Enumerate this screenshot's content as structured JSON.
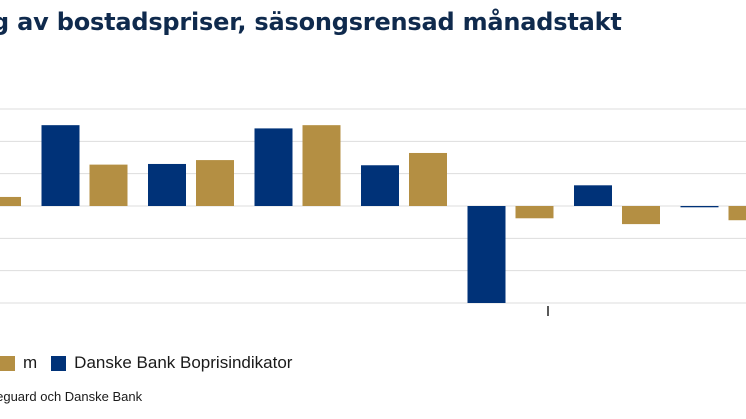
{
  "chart_data": {
    "type": "bar",
    "title": "g av bostadspriser, säsongsrensad månadstakt",
    "grid": true,
    "ylim": [
      -1.5,
      1.5
    ],
    "yticks": [
      -1.5,
      -1,
      -0.5,
      0,
      0.5,
      1,
      1.5
    ],
    "categories": [
      "",
      "",
      "",
      "",
      "",
      "",
      "",
      ""
    ],
    "series": [
      {
        "name": "Danske Bank Boprisindikator",
        "color": "#003278",
        "values": [
          null,
          1.25,
          0.65,
          1.2,
          0.63,
          -1.5,
          0.32,
          -0.02
        ]
      },
      {
        "name": "m",
        "color": "#b48f43",
        "values": [
          0.14,
          0.64,
          0.71,
          1.25,
          0.82,
          -0.19,
          -0.28,
          -0.22
        ]
      }
    ]
  },
  "legend": [
    {
      "label": "m",
      "color": "#b48f43"
    },
    {
      "label": "Danske Bank Boprisindikator",
      "color": "#003278"
    }
  ],
  "source": "lueguard och Danske Bank"
}
